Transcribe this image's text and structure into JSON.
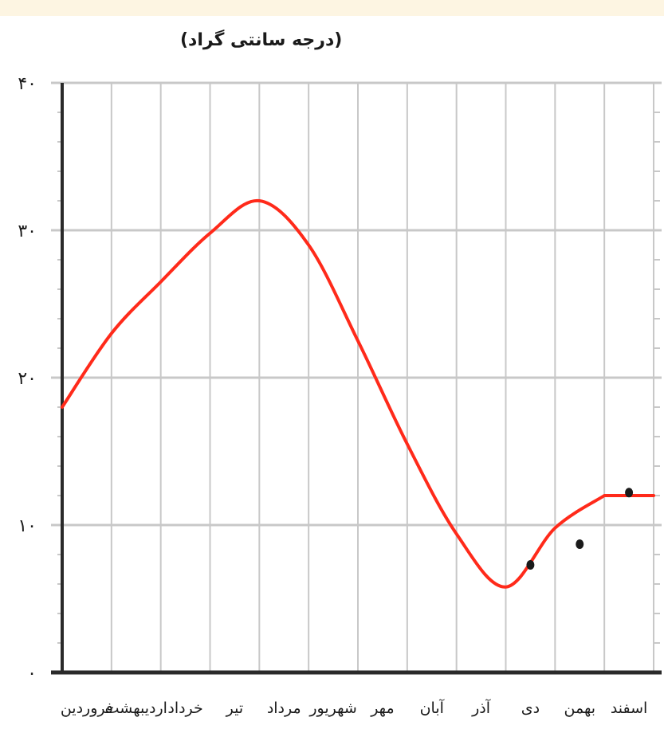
{
  "chart_data": {
    "type": "line",
    "ylabel": "(درجه سانتی گراد)",
    "ylim": [
      0,
      40
    ],
    "y_ticks": [
      {
        "value": 0,
        "label": "۰"
      },
      {
        "value": 10,
        "label": "۱۰"
      },
      {
        "value": 20,
        "label": "۲۰"
      },
      {
        "value": 30,
        "label": "۳۰"
      },
      {
        "value": 40,
        "label": "۴۰"
      }
    ],
    "categories": [
      "فروردین",
      "اردیبهشت",
      "خرداد",
      "تیر",
      "مرداد",
      "شهریور",
      "مهر",
      "آبان",
      "آذر",
      "دی",
      "بهمن",
      "اسفند"
    ],
    "series": [
      {
        "values": [
          18,
          23,
          26.5,
          29.8,
          32,
          29,
          22.5,
          15.5,
          9.4,
          5.8,
          9.8,
          12
        ]
      }
    ],
    "markers": [
      {
        "x": 9.5,
        "y": 7.3
      },
      {
        "x": 10.5,
        "y": 8.7
      },
      {
        "x": 11.5,
        "y": 12.2
      }
    ],
    "grid": true,
    "colors": {
      "line": "#ff2a1a",
      "grid": "#c8c8c8",
      "axis": "#2a2a2a",
      "marker": "#1a1a1a",
      "band": "#fdf5e2"
    }
  }
}
